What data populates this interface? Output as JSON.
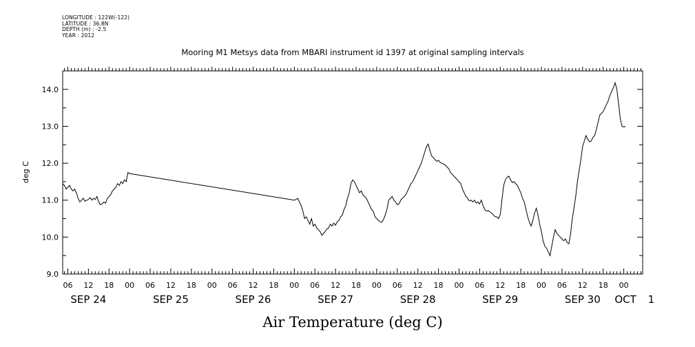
{
  "metadata_lines": [
    "LONGITUDE : 122W(-122)",
    "LATITUDE : 36.8N",
    "DEPTH (m) : -2.5",
    "YEAR : 2012"
  ],
  "chart_data": {
    "type": "line",
    "title": "Mooring M1 Metsys data from MBARI instrument id 1397 at original sampling intervals",
    "xlabel": "Air Temperature (deg C)",
    "ylabel": "deg C",
    "ylim": [
      9.0,
      14.5
    ],
    "yticks": [
      "9.0",
      "10.0",
      "11.0",
      "12.0",
      "13.0",
      "14.0"
    ],
    "x_unit": "hours since 2012-09-24 00:00",
    "xlim": [
      4.5,
      173.5
    ],
    "hour_ticks": [
      "06",
      "12",
      "18",
      "00",
      "06",
      "12",
      "18",
      "00",
      "06",
      "12",
      "18",
      "00",
      "06",
      "12",
      "18",
      "00",
      "06",
      "12",
      "18",
      "00",
      "06",
      "12",
      "18",
      "00",
      "06",
      "12",
      "18",
      "00"
    ],
    "day_labels": [
      "SEP 24",
      "SEP 25",
      "SEP 26",
      "SEP 27",
      "SEP 28",
      "SEP 29",
      "SEP 30",
      "OCT",
      "1"
    ],
    "grid": false,
    "line_color": "#000000",
    "series": [
      {
        "name": "",
        "points": [
          [
            4.5,
            11.45
          ],
          [
            5,
            11.4
          ],
          [
            5.5,
            11.3
          ],
          [
            6,
            11.35
          ],
          [
            6.5,
            11.4
          ],
          [
            7,
            11.3
          ],
          [
            7.5,
            11.25
          ],
          [
            8,
            11.3
          ],
          [
            8.5,
            11.2
          ],
          [
            9,
            11.05
          ],
          [
            9.5,
            10.95
          ],
          [
            10,
            11.0
          ],
          [
            10.5,
            11.05
          ],
          [
            11,
            10.97
          ],
          [
            11.5,
            11.0
          ],
          [
            12,
            11.02
          ],
          [
            12.5,
            11.07
          ],
          [
            13,
            11.0
          ],
          [
            13.5,
            11.05
          ],
          [
            14,
            11.02
          ],
          [
            14.5,
            11.1
          ],
          [
            15,
            10.95
          ],
          [
            15.5,
            10.88
          ],
          [
            16,
            10.9
          ],
          [
            16.5,
            10.95
          ],
          [
            17,
            10.92
          ],
          [
            17.5,
            11.05
          ],
          [
            18,
            11.1
          ],
          [
            18.5,
            11.15
          ],
          [
            19,
            11.25
          ],
          [
            19.5,
            11.3
          ],
          [
            20,
            11.35
          ],
          [
            20.5,
            11.45
          ],
          [
            21,
            11.4
          ],
          [
            21.5,
            11.5
          ],
          [
            22,
            11.45
          ],
          [
            22.5,
            11.55
          ],
          [
            23,
            11.5
          ],
          [
            23.5,
            11.75
          ],
          [
            24,
            11.72
          ],
          [
            72,
            11.0
          ],
          [
            72.5,
            11.02
          ],
          [
            73,
            11.05
          ],
          [
            73.5,
            10.95
          ],
          [
            74,
            10.85
          ],
          [
            74.5,
            10.7
          ],
          [
            75,
            10.5
          ],
          [
            75.5,
            10.55
          ],
          [
            76,
            10.45
          ],
          [
            76.5,
            10.35
          ],
          [
            77,
            10.5
          ],
          [
            77.5,
            10.3
          ],
          [
            78,
            10.35
          ],
          [
            78.5,
            10.25
          ],
          [
            79,
            10.2
          ],
          [
            79.5,
            10.15
          ],
          [
            80,
            10.05
          ],
          [
            80.5,
            10.1
          ],
          [
            81,
            10.15
          ],
          [
            81.5,
            10.22
          ],
          [
            82,
            10.25
          ],
          [
            82.5,
            10.35
          ],
          [
            83,
            10.3
          ],
          [
            83.5,
            10.38
          ],
          [
            84,
            10.32
          ],
          [
            84.5,
            10.42
          ],
          [
            85,
            10.45
          ],
          [
            85.5,
            10.55
          ],
          [
            86,
            10.6
          ],
          [
            86.5,
            10.75
          ],
          [
            87,
            10.85
          ],
          [
            87.5,
            11.05
          ],
          [
            88,
            11.2
          ],
          [
            88.5,
            11.45
          ],
          [
            89,
            11.55
          ],
          [
            89.5,
            11.5
          ],
          [
            90,
            11.4
          ],
          [
            90.5,
            11.3
          ],
          [
            91,
            11.2
          ],
          [
            91.5,
            11.25
          ],
          [
            92,
            11.15
          ],
          [
            92.5,
            11.1
          ],
          [
            93,
            11.05
          ],
          [
            93.5,
            10.95
          ],
          [
            94,
            10.85
          ],
          [
            94.5,
            10.75
          ],
          [
            95,
            10.7
          ],
          [
            95.5,
            10.55
          ],
          [
            96,
            10.5
          ],
          [
            96.5,
            10.45
          ],
          [
            97,
            10.42
          ],
          [
            97.5,
            10.4
          ],
          [
            98,
            10.48
          ],
          [
            98.5,
            10.6
          ],
          [
            99,
            10.75
          ],
          [
            99.5,
            11.0
          ],
          [
            100,
            11.05
          ],
          [
            100.5,
            11.1
          ],
          [
            101,
            11.0
          ],
          [
            101.5,
            10.95
          ],
          [
            102,
            10.88
          ],
          [
            102.5,
            10.9
          ],
          [
            103,
            11.0
          ],
          [
            103.5,
            11.05
          ],
          [
            104,
            11.1
          ],
          [
            104.5,
            11.15
          ],
          [
            105,
            11.25
          ],
          [
            105.5,
            11.35
          ],
          [
            106,
            11.45
          ],
          [
            106.5,
            11.5
          ],
          [
            107,
            11.6
          ],
          [
            107.5,
            11.7
          ],
          [
            108,
            11.8
          ],
          [
            108.5,
            11.9
          ],
          [
            109,
            12.0
          ],
          [
            109.5,
            12.15
          ],
          [
            110,
            12.3
          ],
          [
            110.5,
            12.45
          ],
          [
            111,
            12.52
          ],
          [
            111.5,
            12.35
          ],
          [
            112,
            12.2
          ],
          [
            112.5,
            12.15
          ],
          [
            113,
            12.1
          ],
          [
            113.5,
            12.05
          ],
          [
            114,
            12.08
          ],
          [
            114.5,
            12.02
          ],
          [
            115,
            12.0
          ],
          [
            115.5,
            11.98
          ],
          [
            116,
            11.95
          ],
          [
            116.5,
            11.9
          ],
          [
            117,
            11.85
          ],
          [
            117.5,
            11.75
          ],
          [
            118,
            11.7
          ],
          [
            118.5,
            11.65
          ],
          [
            119,
            11.6
          ],
          [
            119.5,
            11.55
          ],
          [
            120,
            11.5
          ],
          [
            120.5,
            11.45
          ],
          [
            121,
            11.3
          ],
          [
            121.5,
            11.2
          ],
          [
            122,
            11.1
          ],
          [
            122.5,
            11.05
          ],
          [
            123,
            10.98
          ],
          [
            123.5,
            11.0
          ],
          [
            124,
            10.95
          ],
          [
            124.5,
            11.0
          ],
          [
            125,
            10.92
          ],
          [
            125.5,
            10.95
          ],
          [
            126,
            10.9
          ],
          [
            126.5,
            11.0
          ],
          [
            127,
            10.85
          ],
          [
            127.5,
            10.75
          ],
          [
            128,
            10.7
          ],
          [
            128.5,
            10.72
          ],
          [
            129,
            10.68
          ],
          [
            129.5,
            10.65
          ],
          [
            130,
            10.6
          ],
          [
            130.5,
            10.55
          ],
          [
            131,
            10.55
          ],
          [
            131.5,
            10.5
          ],
          [
            132,
            10.6
          ],
          [
            132.5,
            11.0
          ],
          [
            133,
            11.4
          ],
          [
            133.5,
            11.55
          ],
          [
            134,
            11.62
          ],
          [
            134.5,
            11.65
          ],
          [
            135,
            11.55
          ],
          [
            135.5,
            11.48
          ],
          [
            136,
            11.5
          ],
          [
            136.5,
            11.45
          ],
          [
            137,
            11.4
          ],
          [
            137.5,
            11.3
          ],
          [
            138,
            11.2
          ],
          [
            138.5,
            11.05
          ],
          [
            139,
            10.95
          ],
          [
            139.5,
            10.75
          ],
          [
            140,
            10.55
          ],
          [
            140.5,
            10.4
          ],
          [
            141,
            10.3
          ],
          [
            141.5,
            10.45
          ],
          [
            142,
            10.65
          ],
          [
            142.5,
            10.78
          ],
          [
            143,
            10.6
          ],
          [
            143.5,
            10.35
          ],
          [
            144,
            10.15
          ],
          [
            144.5,
            9.9
          ],
          [
            145,
            9.75
          ],
          [
            145.5,
            9.7
          ],
          [
            146,
            9.6
          ],
          [
            146.5,
            9.5
          ],
          [
            147,
            9.75
          ],
          [
            147.5,
            10.0
          ],
          [
            148,
            10.2
          ],
          [
            148.5,
            10.1
          ],
          [
            149,
            10.05
          ],
          [
            149.5,
            10.0
          ],
          [
            150,
            9.95
          ],
          [
            150.5,
            9.9
          ],
          [
            151,
            9.95
          ],
          [
            151.5,
            9.85
          ],
          [
            152,
            9.82
          ],
          [
            152.5,
            10.1
          ],
          [
            153,
            10.5
          ],
          [
            153.5,
            10.8
          ],
          [
            154,
            11.1
          ],
          [
            154.5,
            11.5
          ],
          [
            155,
            11.8
          ],
          [
            155.5,
            12.1
          ],
          [
            156,
            12.45
          ],
          [
            156.5,
            12.6
          ],
          [
            157,
            12.75
          ],
          [
            157.5,
            12.65
          ],
          [
            158,
            12.58
          ],
          [
            158.5,
            12.6
          ],
          [
            159,
            12.7
          ],
          [
            159.5,
            12.75
          ],
          [
            160,
            12.9
          ],
          [
            160.5,
            13.1
          ],
          [
            161,
            13.3
          ],
          [
            161.5,
            13.35
          ],
          [
            162,
            13.4
          ],
          [
            162.5,
            13.5
          ],
          [
            163,
            13.6
          ],
          [
            163.5,
            13.7
          ],
          [
            164,
            13.85
          ],
          [
            164.5,
            13.95
          ],
          [
            165,
            14.05
          ],
          [
            165.5,
            14.18
          ],
          [
            166,
            14.0
          ],
          [
            166.5,
            13.6
          ],
          [
            167,
            13.2
          ],
          [
            167.5,
            13.0
          ],
          [
            168,
            12.98
          ],
          [
            168.5,
            13.0
          ]
        ]
      }
    ]
  }
}
